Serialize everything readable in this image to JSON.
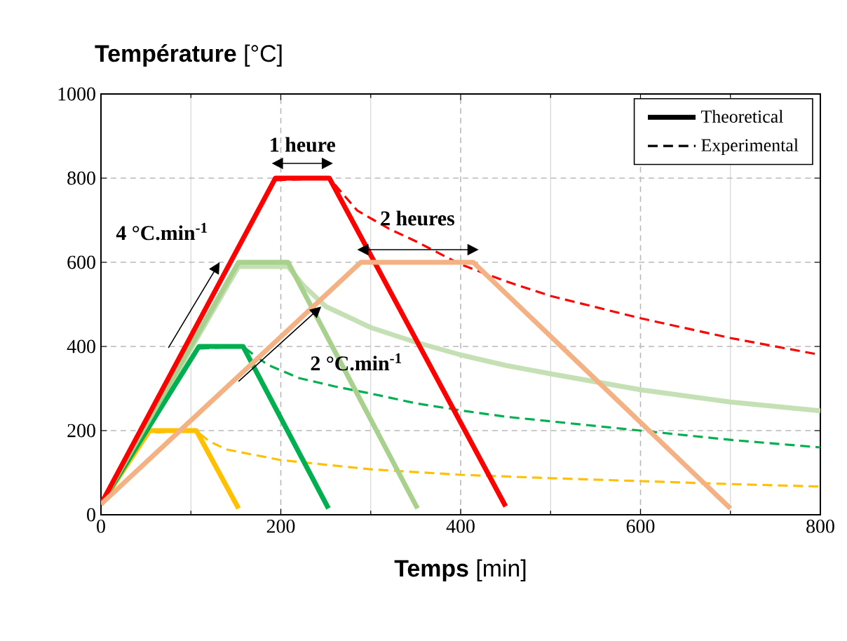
{
  "chart_data": {
    "type": "line",
    "ylabel": "**Température** [°C]",
    "xlabel": "**Temps** [min]",
    "xlim": [
      0,
      800
    ],
    "xticks": [
      0,
      200,
      400,
      600,
      800
    ],
    "ylim": [
      0,
      1000
    ],
    "yticks": [
      0,
      200,
      400,
      600,
      800,
      1000
    ],
    "grid": true,
    "legend": "top right",
    "annotations": [
      "1 heure",
      "2 heures",
      "4 °C.min$^{-1}$",
      "2 °C.min$^{-1}$"
    ],
    "series": [
      {
        "name": "Theoretical",
        "color": "#000000",
        "line_style": "solid"
      },
      {
        "name": "Experimental",
        "color": "#000000",
        "line_style": "dashed"
      },
      {
        "color": "#ffc000",
        "line_style": "dashed",
        "x": [
          0,
          54,
          106,
          120,
          140,
          200,
          300,
          400,
          500,
          600,
          700,
          800
        ],
        "values": [
          25,
          195,
          200,
          175,
          155,
          130,
          108,
          95,
          87,
          80,
          73,
          67
        ]
      },
      {
        "color": "#00b050",
        "line_style": "dashed",
        "x": [
          0,
          109,
          158,
          170,
          185,
          220,
          260,
          300,
          350,
          400,
          450,
          500,
          600,
          700,
          800
        ],
        "values": [
          25,
          395,
          400,
          380,
          357,
          325,
          305,
          288,
          265,
          248,
          233,
          222,
          200,
          178,
          160
        ]
      },
      {
        "color": "#c5e0b4",
        "line_style": "solid",
        "x": [
          0,
          153,
          208,
          225,
          250,
          300,
          350,
          400,
          450,
          500,
          600,
          700,
          800
        ],
        "values": [
          25,
          590,
          590,
          545,
          495,
          445,
          410,
          380,
          355,
          335,
          297,
          268,
          247
        ]
      },
      {
        "color": "#ff0000",
        "line_style": "dashed",
        "x": [
          0,
          194,
          254,
          270,
          285,
          320,
          350,
          400,
          450,
          500,
          600,
          700,
          800
        ],
        "values": [
          25,
          795,
          800,
          760,
          723,
          680,
          650,
          595,
          555,
          520,
          467,
          420,
          380
        ]
      },
      {
        "color": "#ffc000",
        "line_style": "solid",
        "x": [
          0,
          54,
          106,
          153
        ],
        "values": [
          25,
          200,
          200,
          15
        ]
      },
      {
        "color": "#00b050",
        "line_style": "solid",
        "x": [
          0,
          109,
          158,
          253
        ],
        "values": [
          25,
          400,
          400,
          15
        ]
      },
      {
        "color": "#a9d18e",
        "line_style": "solid",
        "x": [
          0,
          153,
          208,
          352
        ],
        "values": [
          25,
          600,
          600,
          15
        ]
      },
      {
        "color": "#ff0000",
        "line_style": "solid",
        "x": [
          0,
          194,
          254,
          450
        ],
        "values": [
          25,
          800,
          800,
          20
        ]
      },
      {
        "color": "#f4b183",
        "line_style": "solid",
        "x": [
          0,
          289,
          414,
          700
        ],
        "values": [
          25,
          600,
          600,
          15
        ]
      }
    ]
  }
}
